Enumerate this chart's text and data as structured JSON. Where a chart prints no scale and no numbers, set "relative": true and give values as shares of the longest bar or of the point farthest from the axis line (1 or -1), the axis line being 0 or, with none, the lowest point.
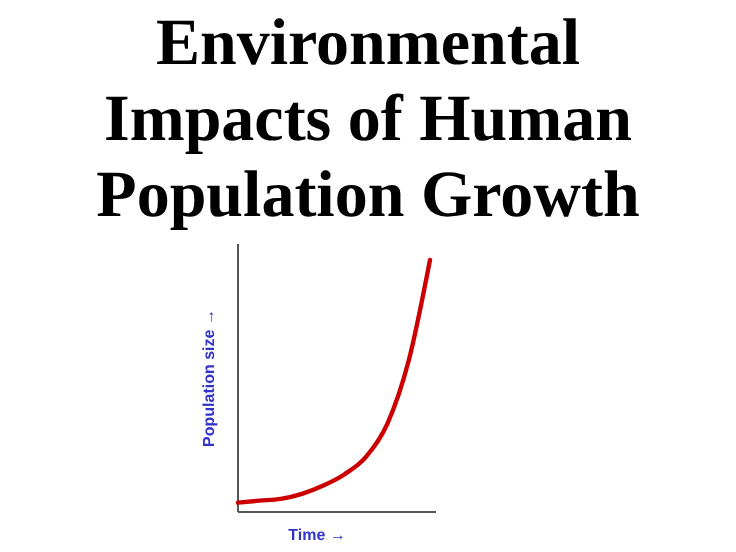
{
  "chart_data": {
    "type": "line",
    "title": "Environmental Impacts of Human Population Growth",
    "xlabel": "Time →",
    "ylabel": "Population size →",
    "relative": true,
    "categories": [
      null,
      null,
      null,
      null,
      null,
      null,
      null,
      null,
      null,
      null
    ],
    "series": [
      {
        "color": "#cc0000",
        "values": [
          0.037,
          0.045,
          0.052,
          0.072,
          0.105,
          0.15,
          0.219,
          0.35,
          0.6,
          1
        ]
      }
    ],
    "grid": false,
    "marker": "none",
    "line_style": "solid"
  }
}
